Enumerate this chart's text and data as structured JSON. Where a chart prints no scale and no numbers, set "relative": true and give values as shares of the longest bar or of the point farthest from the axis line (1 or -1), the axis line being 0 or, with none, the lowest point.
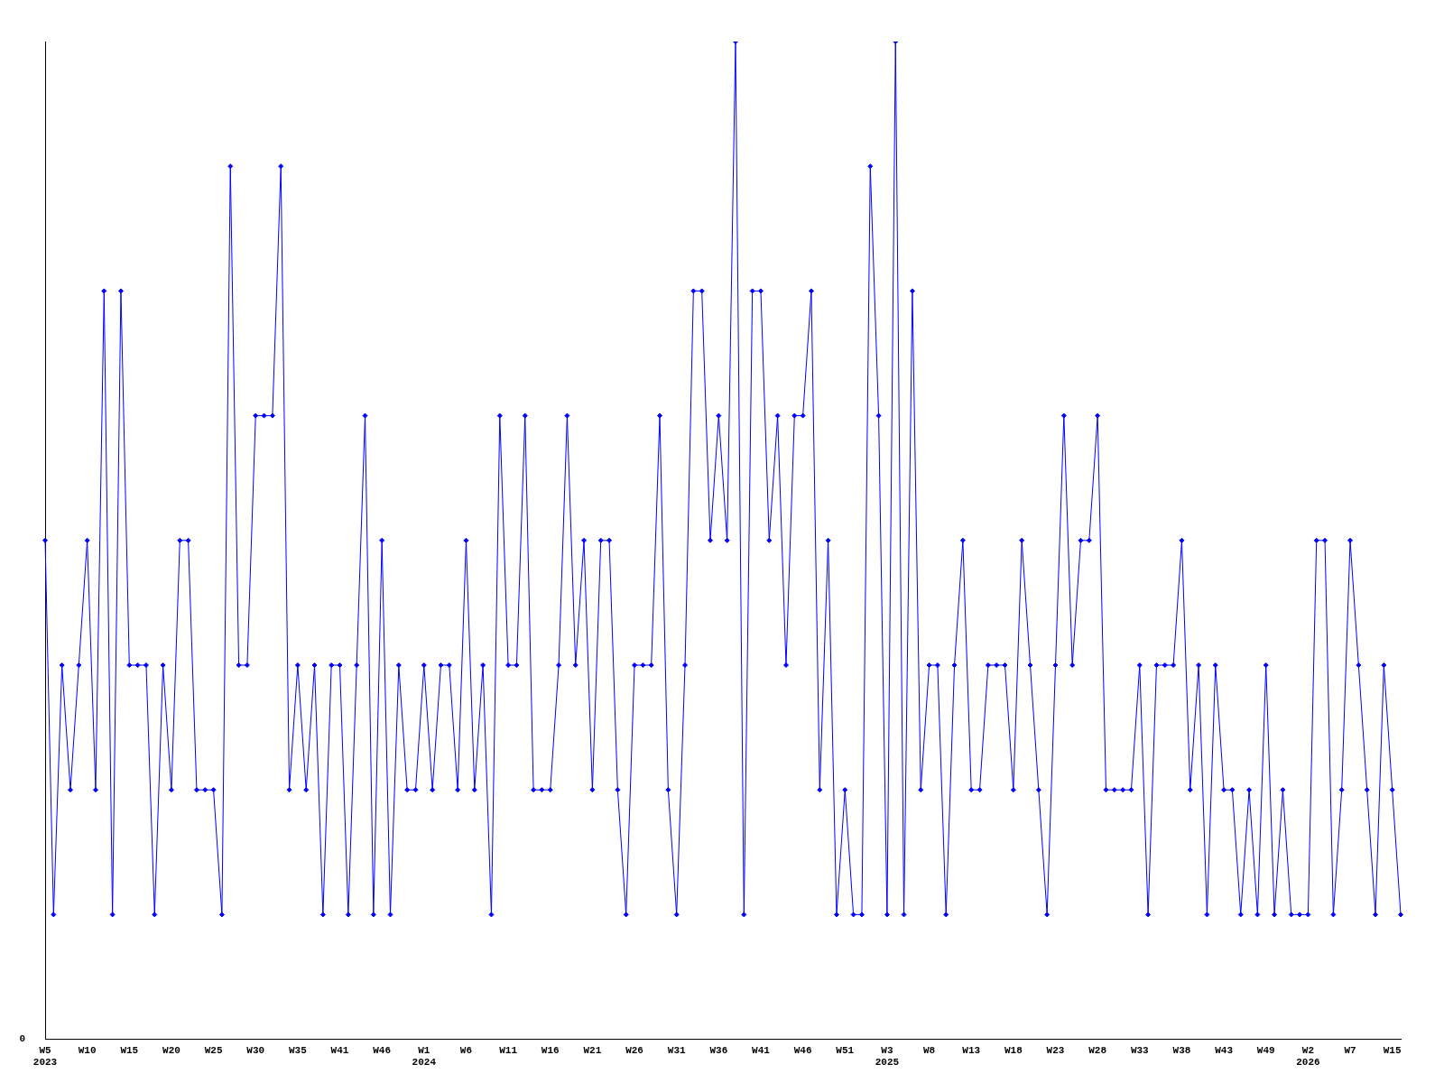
{
  "chart_data": {
    "type": "line",
    "relative": true,
    "marker": "diamond",
    "line_style": "solid",
    "legend": false,
    "grid": false,
    "annotations": [
      "0"
    ],
    "categories": [
      "W5\n2023",
      null,
      null,
      null,
      null,
      "W10",
      null,
      null,
      null,
      null,
      "W15",
      null,
      null,
      null,
      null,
      "W20",
      null,
      null,
      null,
      null,
      "W25",
      null,
      null,
      null,
      null,
      "W30",
      null,
      null,
      null,
      null,
      "W35",
      null,
      null,
      null,
      null,
      "W41",
      null,
      null,
      null,
      null,
      "W46",
      null,
      null,
      null,
      null,
      "W1\n2024",
      null,
      null,
      null,
      null,
      "W6",
      null,
      null,
      null,
      null,
      "W11",
      null,
      null,
      null,
      null,
      "W16",
      null,
      null,
      null,
      null,
      "W21",
      null,
      null,
      null,
      null,
      "W26",
      null,
      null,
      null,
      null,
      "W31",
      null,
      null,
      null,
      null,
      "W36",
      null,
      null,
      null,
      null,
      "W41",
      null,
      null,
      null,
      null,
      "W46",
      null,
      null,
      null,
      null,
      "W51",
      null,
      null,
      null,
      null,
      "W3\n2025",
      null,
      null,
      null,
      null,
      "W8",
      null,
      null,
      null,
      null,
      "W13",
      null,
      null,
      null,
      null,
      "W18",
      null,
      null,
      null,
      null,
      "W23",
      null,
      null,
      null,
      null,
      "W28",
      null,
      null,
      null,
      null,
      "W33",
      null,
      null,
      null,
      null,
      "W38",
      null,
      null,
      null,
      null,
      "W43",
      null,
      null,
      null,
      null,
      "W49",
      null,
      null,
      null,
      null,
      "W2\n2026",
      null,
      null,
      null,
      null,
      "W7",
      null,
      null,
      null,
      null,
      "W15",
      null
    ],
    "series": [
      {
        "color": "#0000ff",
        "values": [
          0.5,
          0.125,
          0.375,
          0.25,
          0.375,
          0.5,
          0.25,
          0.75,
          0.125,
          0.75,
          0.375,
          0.375,
          0.375,
          0.125,
          0.375,
          0.25,
          0.5,
          0.5,
          0.25,
          0.25,
          0.25,
          0.125,
          0.875,
          0.375,
          0.375,
          0.625,
          0.625,
          0.625,
          0.875,
          0.25,
          0.375,
          0.25,
          0.375,
          0.125,
          0.375,
          0.375,
          0.125,
          0.375,
          0.625,
          0.125,
          0.5,
          0.125,
          0.375,
          0.25,
          0.25,
          0.375,
          0.25,
          0.375,
          0.375,
          0.25,
          0.5,
          0.25,
          0.375,
          0.125,
          0.625,
          0.375,
          0.375,
          0.625,
          0.25,
          0.25,
          0.25,
          0.375,
          0.625,
          0.375,
          0.5,
          0.25,
          0.5,
          0.5,
          0.25,
          0.125,
          0.375,
          0.375,
          0.375,
          0.625,
          0.25,
          0.125,
          0.375,
          0.75,
          0.75,
          0.5,
          0.625,
          0.5,
          1,
          0.125,
          0.75,
          0.75,
          0.5,
          0.625,
          0.375,
          0.625,
          0.625,
          0.75,
          0.25,
          0.5,
          0.125,
          0.25,
          0.125,
          0.125,
          0.875,
          0.625,
          0.125,
          1,
          0.125,
          0.75,
          0.25,
          0.375,
          0.375,
          0.125,
          0.375,
          0.5,
          0.25,
          0.25,
          0.375,
          0.375,
          0.375,
          0.25,
          0.5,
          0.375,
          0.25,
          0.125,
          0.375,
          0.625,
          0.375,
          0.5,
          0.5,
          0.625,
          0.25,
          0.25,
          0.25,
          0.25,
          0.375,
          0.125,
          0.375,
          0.375,
          0.375,
          0.5,
          0.25,
          0.375,
          0.125,
          0.375,
          0.25,
          0.25,
          0.125,
          0.25,
          0.125,
          0.375,
          0.125,
          0.25,
          0.125,
          0.125,
          0.125,
          0.5,
          0.5,
          0.125,
          0.25,
          0.5,
          0.375,
          0.25,
          0.125,
          0.375,
          0.25,
          0.125
        ]
      }
    ]
  }
}
